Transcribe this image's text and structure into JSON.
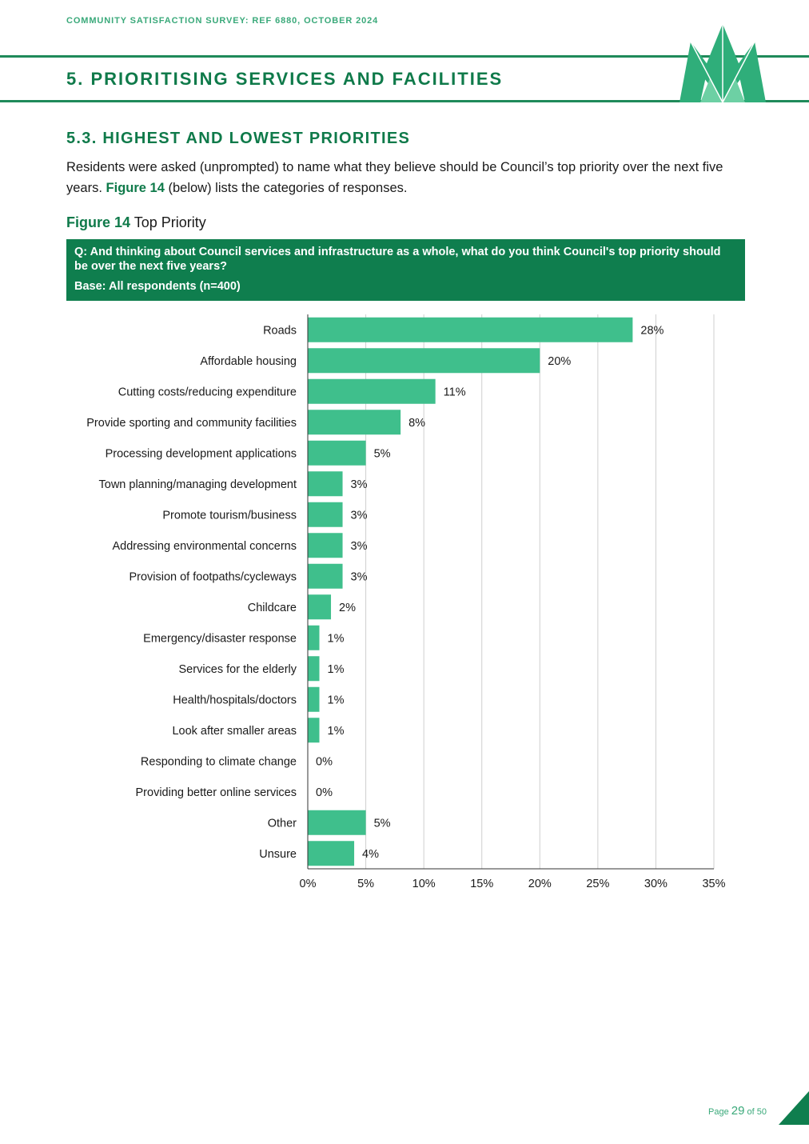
{
  "header": {
    "running_head": "COMMUNITY SATISFACTION SURVEY: REF 6880, OCTOBER 2024",
    "section_title": "5. PRIORITISING SERVICES AND FACILITIES",
    "logo_icon": "leaf-logo-icon",
    "accent": "#0f7a4a",
    "bar_color": "#3fbf8c"
  },
  "section": {
    "subtitle": "5.3. HIGHEST AND LOWEST PRIORITIES",
    "intro_part1": "Residents were asked (unprompted) to name what they believe should be Council’s top priority over the next five years. ",
    "intro_figref": "Figure 14",
    "intro_part2": " (below) lists the categories of responses."
  },
  "figure": {
    "label": "Figure 14",
    "caption": " Top Priority",
    "question": "Q: And thinking about Council services and infrastructure as a whole, what do you think Council's top priority should be over the next five years?",
    "base": "Base: All respondents (n=400)"
  },
  "chart_data": {
    "type": "bar",
    "orientation": "horizontal",
    "categories": [
      "Roads",
      "Affordable housing",
      "Cutting costs/reducing expenditure",
      "Provide sporting and community facilities",
      "Processing development applications",
      "Town planning/managing development",
      "Promote tourism/business",
      "Addressing environmental concerns",
      "Provision of footpaths/cycleways",
      "Childcare",
      "Emergency/disaster response",
      "Services for the elderly",
      "Health/hospitals/doctors",
      "Look after smaller areas",
      "Responding to climate change",
      "Providing better online services",
      "Other",
      "Unsure"
    ],
    "values": [
      28,
      20,
      11,
      8,
      5,
      3,
      3,
      3,
      3,
      2,
      1,
      1,
      1,
      1,
      0,
      0,
      5,
      4
    ],
    "value_labels": [
      "28%",
      "20%",
      "11%",
      "8%",
      "5%",
      "3%",
      "3%",
      "3%",
      "3%",
      "2%",
      "1%",
      "1%",
      "1%",
      "1%",
      "0%",
      "0%",
      "5%",
      "4%"
    ],
    "xlim": [
      0,
      35
    ],
    "ticks": [
      0,
      5,
      10,
      15,
      20,
      25,
      30,
      35
    ],
    "tick_labels": [
      "0%",
      "5%",
      "10%",
      "15%",
      "20%",
      "25%",
      "30%",
      "35%"
    ],
    "grid": true
  },
  "footer": {
    "page_prefix": "Page ",
    "page_number": "29",
    "page_of": " of 50"
  }
}
